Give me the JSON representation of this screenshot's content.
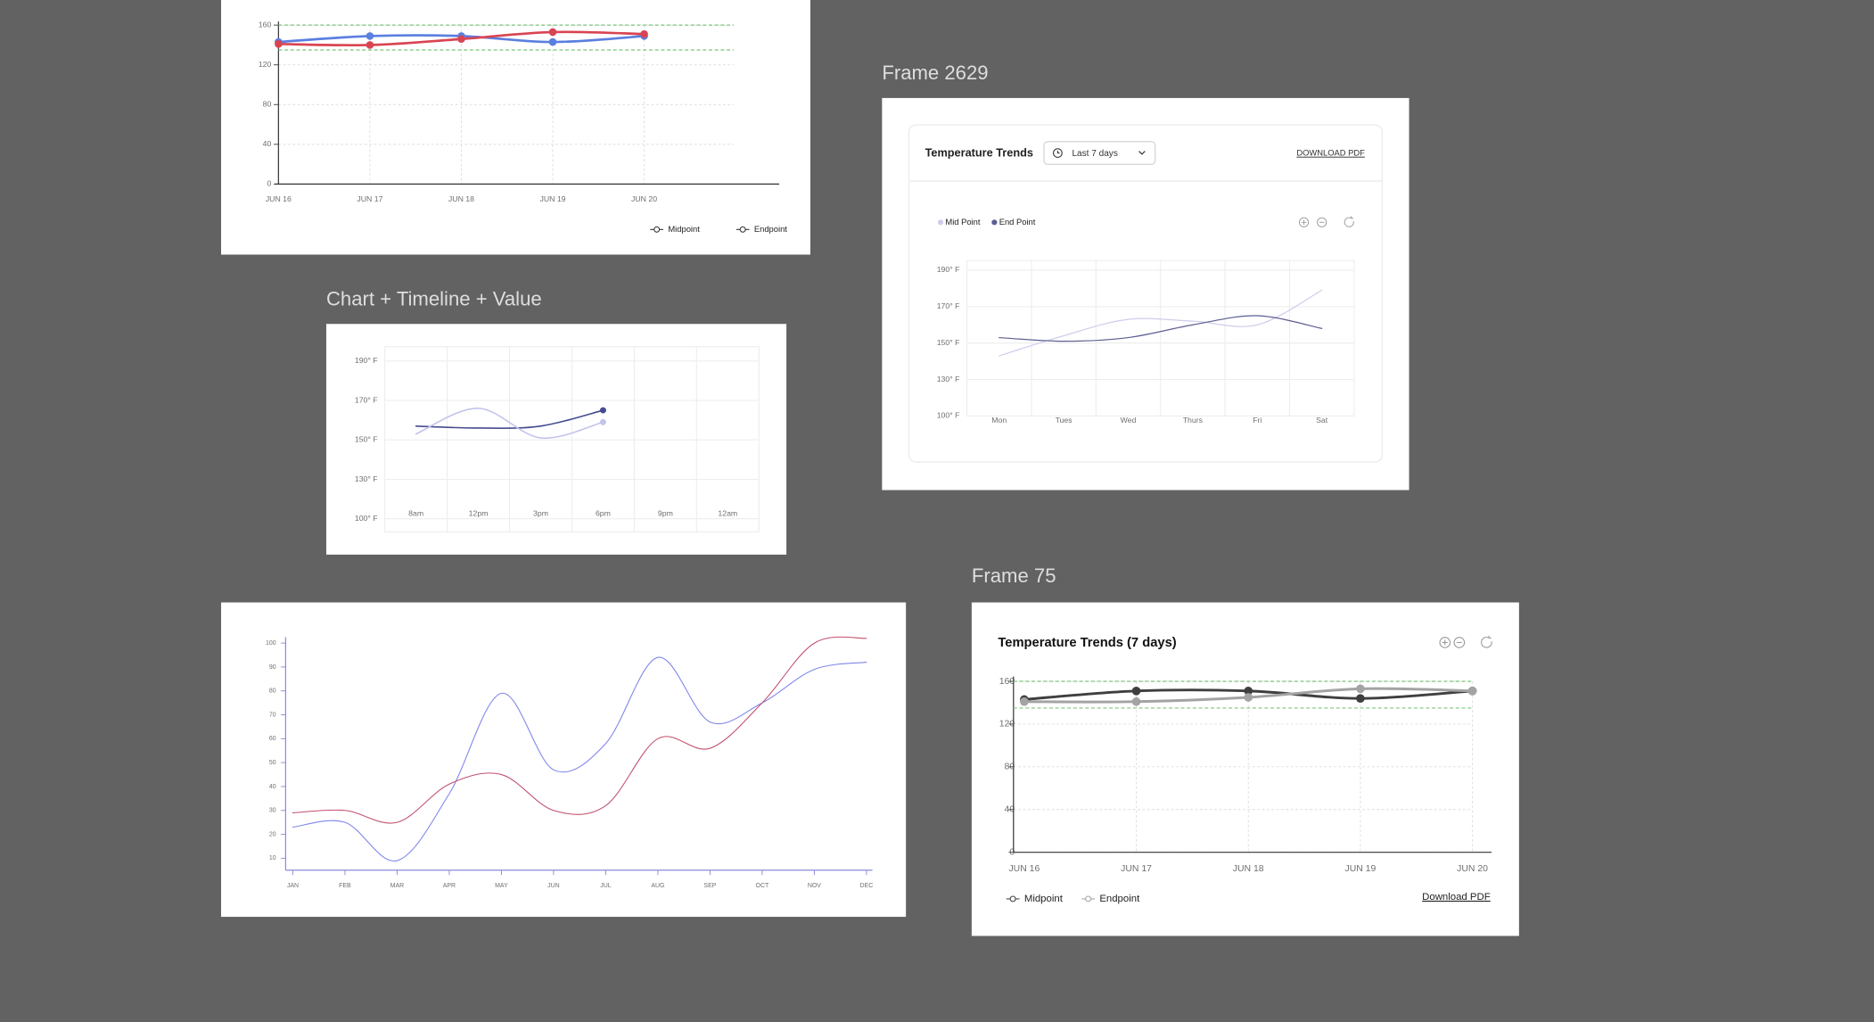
{
  "frame_labels": [
    "Frame 2629",
    "Chart + Timeline + Value",
    "Frame 75"
  ],
  "chart_data": [
    {
      "type": "line",
      "categories": [
        "JUN 16",
        "JUN 17",
        "JUN 18",
        "JUN 19",
        "JUN 20"
      ],
      "series": [
        {
          "name": "Midpoint",
          "color": "#5b7fe0",
          "values": [
            143,
            149,
            149,
            143,
            149
          ]
        },
        {
          "name": "Endpoint",
          "color": "#d94452",
          "values": [
            141,
            140,
            146,
            153,
            151
          ]
        }
      ],
      "ylim": [
        0,
        160
      ],
      "yticks": [
        0,
        40,
        80,
        120,
        160
      ],
      "grid": true,
      "smooth": true,
      "markers": "all",
      "reference_lines": [
        160,
        135
      ],
      "reference_color": "#7cc47c",
      "legend": "lower right"
    },
    {
      "type": "line",
      "categories": [
        "8am",
        "12pm",
        "3pm",
        "6pm",
        "9pm",
        "12am"
      ],
      "series": [
        {
          "color": "#464b8f",
          "values": [
            157,
            156,
            157,
            165,
            null,
            null
          ]
        },
        {
          "color": "#c3c3ec",
          "values": [
            153,
            166,
            151,
            159,
            null,
            null
          ]
        }
      ],
      "ylim": [
        100,
        190
      ],
      "yticks": [
        {
          "value": 190,
          "label": "190° F"
        },
        {
          "value": 170,
          "label": "170° F"
        },
        {
          "value": 150,
          "label": "150° F"
        },
        {
          "value": 130,
          "label": "130° F"
        },
        {
          "value": 100,
          "label": "100° F"
        }
      ],
      "grid": true,
      "smooth": true,
      "markers": "last"
    },
    {
      "type": "line",
      "title": "Temperature Trends",
      "filter": "Last 7 days",
      "download": "DOWNLOAD PDF",
      "categories": [
        "Mon",
        "Tues",
        "Wed",
        "Thurs",
        "Fri",
        "Sat"
      ],
      "series": [
        {
          "name": "Mid Point",
          "color": "#cfcdec",
          "values": [
            143,
            154,
            163,
            162,
            160,
            179
          ]
        },
        {
          "name": "End Point",
          "color": "#5c5d91",
          "values": [
            153,
            151,
            153,
            160,
            165,
            158
          ]
        }
      ],
      "ylim": [
        100,
        190
      ],
      "yticks": [
        {
          "value": 190,
          "label": "190° F"
        },
        {
          "value": 170,
          "label": "170° F"
        },
        {
          "value": 150,
          "label": "150° F"
        },
        {
          "value": 130,
          "label": "130° F"
        },
        {
          "value": 100,
          "label": "100° F"
        }
      ],
      "grid": true,
      "smooth": true,
      "markers": "none",
      "legend": "upper left"
    },
    {
      "type": "line",
      "categories": [
        "JAN",
        "FEB",
        "MAR",
        "APR",
        "MAY",
        "JUN",
        "JUL",
        "AUG",
        "SEP",
        "OCT",
        "NOV",
        "DEC"
      ],
      "series": [
        {
          "color": "#7f86ea",
          "values": [
            23,
            25,
            9,
            37,
            79,
            47,
            58,
            94,
            67,
            75,
            89,
            92
          ]
        },
        {
          "color": "#c2506e",
          "values": [
            29,
            30,
            25,
            41,
            45,
            30,
            32,
            60,
            56,
            75,
            100,
            102
          ]
        }
      ],
      "ylim": [
        5,
        103
      ],
      "yticks": [
        10,
        20,
        30,
        40,
        50,
        60,
        70,
        80,
        90,
        100
      ],
      "grid": false,
      "smooth": true,
      "markers": "none"
    },
    {
      "type": "line",
      "title": "Temperature Trends (7 days)",
      "download": "Download PDF",
      "categories": [
        "JUN 16",
        "JUN 17",
        "JUN 18",
        "JUN 19",
        "JUN 20"
      ],
      "series": [
        {
          "name": "Midpoint",
          "color": "#3f3f3f",
          "values": [
            143,
            151,
            151,
            144,
            151
          ]
        },
        {
          "name": "Endpoint",
          "color": "#a3a3a3",
          "values": [
            141,
            141,
            145,
            153,
            151
          ]
        }
      ],
      "ylim": [
        0,
        160
      ],
      "yticks": [
        0,
        40,
        80,
        120,
        160
      ],
      "grid": true,
      "smooth": true,
      "markers": "all",
      "reference_lines": [
        160,
        135
      ],
      "reference_color": "#7cc47c",
      "legend": "lower left"
    }
  ]
}
